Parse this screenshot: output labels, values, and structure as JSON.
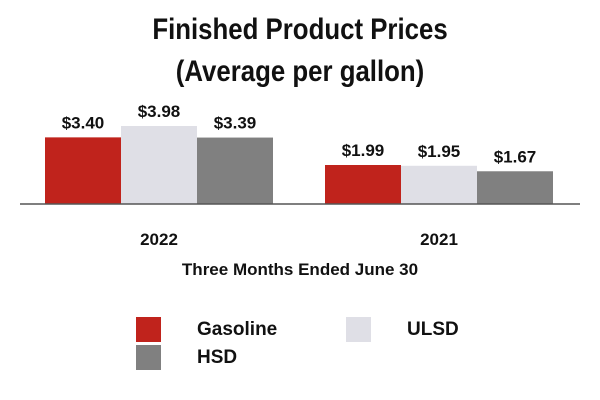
{
  "chart_data": {
    "type": "bar",
    "title": "Finished Product Prices",
    "subtitle": "(Average per gallon)",
    "xlabel": "Three Months Ended June 30",
    "ylabel": "",
    "categories": [
      "2022",
      "2021"
    ],
    "series": [
      {
        "name": "Gasoline",
        "color": "#c0231c",
        "values": [
          3.4,
          1.99
        ],
        "labels": [
          "$3.40",
          "$1.99"
        ]
      },
      {
        "name": "ULSD",
        "color": "#dfdfe6",
        "values": [
          3.98,
          1.95
        ],
        "labels": [
          "$3.98",
          "$1.95"
        ]
      },
      {
        "name": "HSD",
        "color": "#808080",
        "values": [
          3.39,
          1.67
        ],
        "labels": [
          "$3.39",
          "$1.67"
        ]
      }
    ],
    "ylim": [
      0,
      4.0
    ],
    "grid": false,
    "legend_position": "bottom"
  }
}
